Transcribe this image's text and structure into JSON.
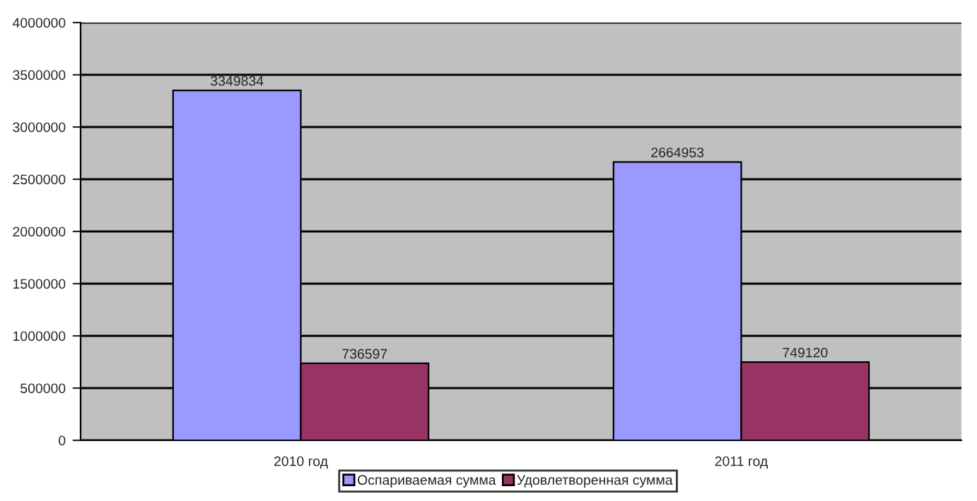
{
  "chart_data": {
    "type": "bar",
    "categories": [
      "2010 год",
      "2011 год"
    ],
    "series": [
      {
        "name": "Оспариваемая сумма",
        "color": "#9999ff",
        "values": [
          3349834,
          2664953
        ]
      },
      {
        "name": "Удовлетворенная сумма",
        "color": "#993366",
        "values": [
          736597,
          749120
        ]
      }
    ],
    "ylim": [
      0,
      4000000
    ],
    "yticks": [
      0,
      500000,
      1000000,
      1500000,
      2000000,
      2500000,
      3000000,
      3500000,
      4000000
    ],
    "grid": "y",
    "legend": "bottom",
    "data_labels": true
  }
}
